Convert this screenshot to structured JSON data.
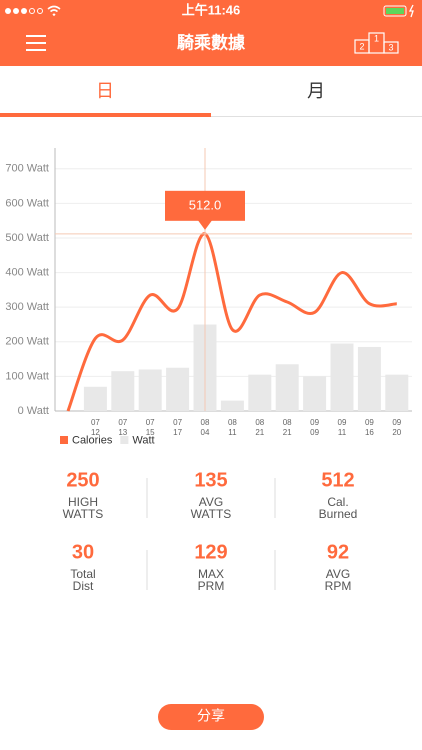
{
  "status_bar": {
    "time": "上午11:46"
  },
  "header": {
    "title": "騎乘數據",
    "podium_labels": [
      "2",
      "1",
      "3"
    ]
  },
  "tabs": [
    "日",
    "月"
  ],
  "chart_data": {
    "type": "combo",
    "categories": [
      null,
      [
        "07",
        "12"
      ],
      [
        "07",
        "13"
      ],
      [
        "07",
        "15"
      ],
      [
        "07",
        "17"
      ],
      [
        "08",
        "04"
      ],
      [
        "08",
        "11"
      ],
      [
        "08",
        "21"
      ],
      [
        "08",
        "21"
      ],
      [
        "09",
        "09"
      ],
      [
        "09",
        "11"
      ],
      [
        "09",
        "16"
      ],
      [
        "09",
        "20"
      ]
    ],
    "series": [
      {
        "name": "Calories",
        "type": "line",
        "color": "#ff6a3d",
        "values": [
          0,
          210,
          205,
          335,
          295,
          512,
          235,
          335,
          315,
          285,
          400,
          310,
          310
        ],
        "value_labels": [
          null,
          null,
          null,
          null,
          null,
          "512.0",
          null,
          null,
          null,
          null,
          null,
          null,
          null
        ]
      },
      {
        "name": "Watt",
        "type": "bar",
        "color": "#e8e8e8",
        "values": [
          null,
          70,
          115,
          120,
          125,
          250,
          30,
          105,
          135,
          100,
          195,
          185,
          105
        ]
      }
    ],
    "ylim": [
      0,
      760
    ],
    "yticks": [
      {
        "value": 0,
        "label": "0 Watt"
      },
      {
        "value": 100,
        "label": "100 Watt"
      },
      {
        "value": 200,
        "label": "200 Watt"
      },
      {
        "value": 300,
        "label": "300 Watt"
      },
      {
        "value": 400,
        "label": "400 Watt"
      },
      {
        "value": 500,
        "label": "500 Watt"
      },
      {
        "value": 600,
        "label": "600 Watt"
      },
      {
        "value": 700,
        "label": "700 Watt"
      }
    ],
    "grid": true,
    "legend": "bottom-left"
  },
  "stats": [
    {
      "value": "250",
      "label": [
        "HIGH",
        "WATTS"
      ]
    },
    {
      "value": "135",
      "label": [
        "AVG",
        "WATTS"
      ]
    },
    {
      "value": "512",
      "label": [
        "Cal.",
        "Burned"
      ]
    },
    {
      "value": "30",
      "label": [
        "Total",
        "Dist"
      ]
    },
    {
      "value": "129",
      "label": [
        "MAX",
        "PRM"
      ]
    },
    {
      "value": "92",
      "label": [
        "AVG",
        "RPM"
      ]
    }
  ],
  "share_button": "分享"
}
